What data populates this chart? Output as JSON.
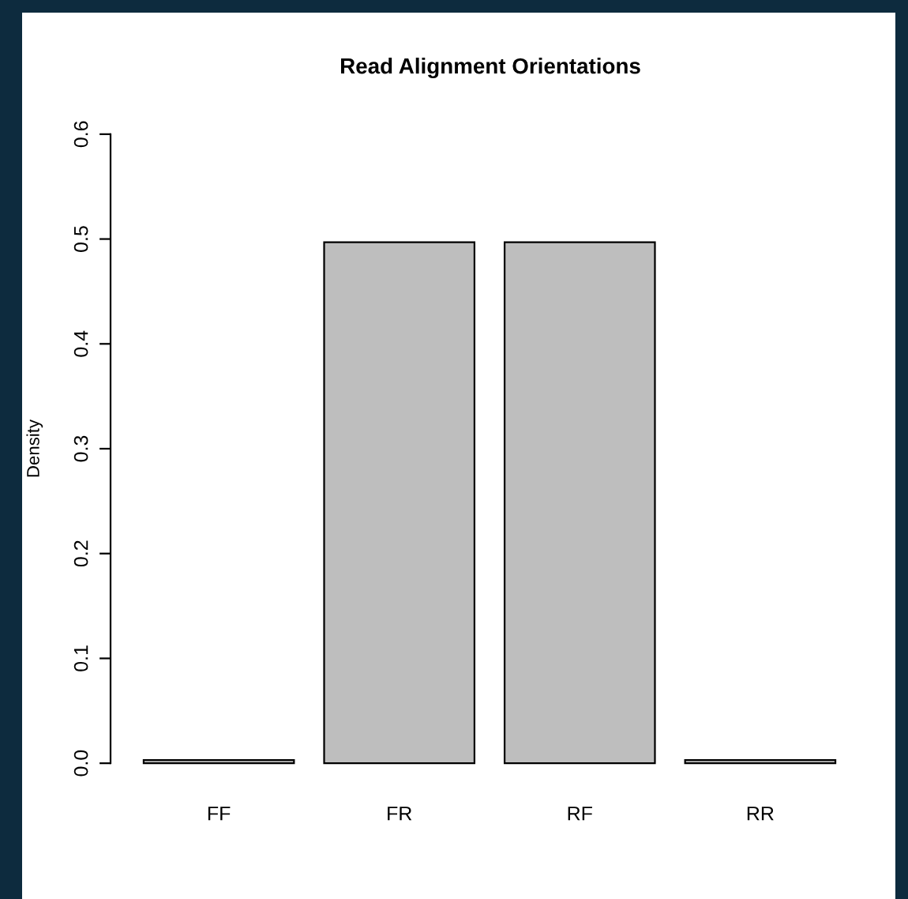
{
  "chart_data": {
    "type": "bar",
    "title": "Read Alignment Orientations",
    "ylabel": "Density",
    "categories": [
      "FF",
      "FR",
      "RF",
      "RR"
    ],
    "values": [
      0.003,
      0.497,
      0.497,
      0.003
    ],
    "color": "#bebebe",
    "ylim": [
      0,
      0.6
    ],
    "yticks": [
      {
        "value": 0,
        "label": "0.0"
      },
      0.1,
      0.2,
      0.3,
      0.4,
      0.5,
      0.6
    ]
  }
}
